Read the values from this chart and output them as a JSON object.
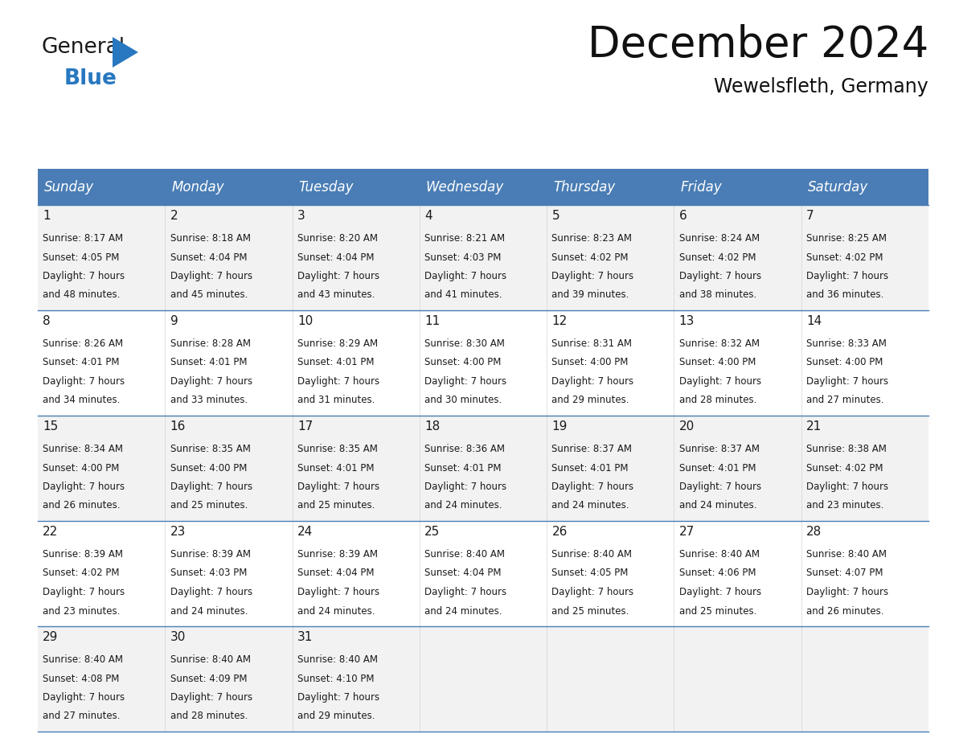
{
  "title": "December 2024",
  "subtitle": "Wewelsfleth, Germany",
  "header_bg_color": "#4a7db5",
  "header_text_color": "#ffffff",
  "cell_bg_color": "#f2f2f2",
  "grid_line_color": "#4a7db5",
  "day_headers": [
    "Sunday",
    "Monday",
    "Tuesday",
    "Wednesday",
    "Thursday",
    "Friday",
    "Saturday"
  ],
  "weeks": [
    [
      {
        "day": 1,
        "sunrise": "8:17 AM",
        "sunset": "4:05 PM",
        "daylight_hours": 7,
        "daylight_minutes": 48
      },
      {
        "day": 2,
        "sunrise": "8:18 AM",
        "sunset": "4:04 PM",
        "daylight_hours": 7,
        "daylight_minutes": 45
      },
      {
        "day": 3,
        "sunrise": "8:20 AM",
        "sunset": "4:04 PM",
        "daylight_hours": 7,
        "daylight_minutes": 43
      },
      {
        "day": 4,
        "sunrise": "8:21 AM",
        "sunset": "4:03 PM",
        "daylight_hours": 7,
        "daylight_minutes": 41
      },
      {
        "day": 5,
        "sunrise": "8:23 AM",
        "sunset": "4:02 PM",
        "daylight_hours": 7,
        "daylight_minutes": 39
      },
      {
        "day": 6,
        "sunrise": "8:24 AM",
        "sunset": "4:02 PM",
        "daylight_hours": 7,
        "daylight_minutes": 38
      },
      {
        "day": 7,
        "sunrise": "8:25 AM",
        "sunset": "4:02 PM",
        "daylight_hours": 7,
        "daylight_minutes": 36
      }
    ],
    [
      {
        "day": 8,
        "sunrise": "8:26 AM",
        "sunset": "4:01 PM",
        "daylight_hours": 7,
        "daylight_minutes": 34
      },
      {
        "day": 9,
        "sunrise": "8:28 AM",
        "sunset": "4:01 PM",
        "daylight_hours": 7,
        "daylight_minutes": 33
      },
      {
        "day": 10,
        "sunrise": "8:29 AM",
        "sunset": "4:01 PM",
        "daylight_hours": 7,
        "daylight_minutes": 31
      },
      {
        "day": 11,
        "sunrise": "8:30 AM",
        "sunset": "4:00 PM",
        "daylight_hours": 7,
        "daylight_minutes": 30
      },
      {
        "day": 12,
        "sunrise": "8:31 AM",
        "sunset": "4:00 PM",
        "daylight_hours": 7,
        "daylight_minutes": 29
      },
      {
        "day": 13,
        "sunrise": "8:32 AM",
        "sunset": "4:00 PM",
        "daylight_hours": 7,
        "daylight_minutes": 28
      },
      {
        "day": 14,
        "sunrise": "8:33 AM",
        "sunset": "4:00 PM",
        "daylight_hours": 7,
        "daylight_minutes": 27
      }
    ],
    [
      {
        "day": 15,
        "sunrise": "8:34 AM",
        "sunset": "4:00 PM",
        "daylight_hours": 7,
        "daylight_minutes": 26
      },
      {
        "day": 16,
        "sunrise": "8:35 AM",
        "sunset": "4:00 PM",
        "daylight_hours": 7,
        "daylight_minutes": 25
      },
      {
        "day": 17,
        "sunrise": "8:35 AM",
        "sunset": "4:01 PM",
        "daylight_hours": 7,
        "daylight_minutes": 25
      },
      {
        "day": 18,
        "sunrise": "8:36 AM",
        "sunset": "4:01 PM",
        "daylight_hours": 7,
        "daylight_minutes": 24
      },
      {
        "day": 19,
        "sunrise": "8:37 AM",
        "sunset": "4:01 PM",
        "daylight_hours": 7,
        "daylight_minutes": 24
      },
      {
        "day": 20,
        "sunrise": "8:37 AM",
        "sunset": "4:01 PM",
        "daylight_hours": 7,
        "daylight_minutes": 24
      },
      {
        "day": 21,
        "sunrise": "8:38 AM",
        "sunset": "4:02 PM",
        "daylight_hours": 7,
        "daylight_minutes": 23
      }
    ],
    [
      {
        "day": 22,
        "sunrise": "8:39 AM",
        "sunset": "4:02 PM",
        "daylight_hours": 7,
        "daylight_minutes": 23
      },
      {
        "day": 23,
        "sunrise": "8:39 AM",
        "sunset": "4:03 PM",
        "daylight_hours": 7,
        "daylight_minutes": 24
      },
      {
        "day": 24,
        "sunrise": "8:39 AM",
        "sunset": "4:04 PM",
        "daylight_hours": 7,
        "daylight_minutes": 24
      },
      {
        "day": 25,
        "sunrise": "8:40 AM",
        "sunset": "4:04 PM",
        "daylight_hours": 7,
        "daylight_minutes": 24
      },
      {
        "day": 26,
        "sunrise": "8:40 AM",
        "sunset": "4:05 PM",
        "daylight_hours": 7,
        "daylight_minutes": 25
      },
      {
        "day": 27,
        "sunrise": "8:40 AM",
        "sunset": "4:06 PM",
        "daylight_hours": 7,
        "daylight_minutes": 25
      },
      {
        "day": 28,
        "sunrise": "8:40 AM",
        "sunset": "4:07 PM",
        "daylight_hours": 7,
        "daylight_minutes": 26
      }
    ],
    [
      {
        "day": 29,
        "sunrise": "8:40 AM",
        "sunset": "4:08 PM",
        "daylight_hours": 7,
        "daylight_minutes": 27
      },
      {
        "day": 30,
        "sunrise": "8:40 AM",
        "sunset": "4:09 PM",
        "daylight_hours": 7,
        "daylight_minutes": 28
      },
      {
        "day": 31,
        "sunrise": "8:40 AM",
        "sunset": "4:10 PM",
        "daylight_hours": 7,
        "daylight_minutes": 29
      },
      null,
      null,
      null,
      null
    ]
  ],
  "title_fontsize": 38,
  "subtitle_fontsize": 17,
  "header_fontsize": 12,
  "day_num_fontsize": 11,
  "cell_text_fontsize": 8.5
}
